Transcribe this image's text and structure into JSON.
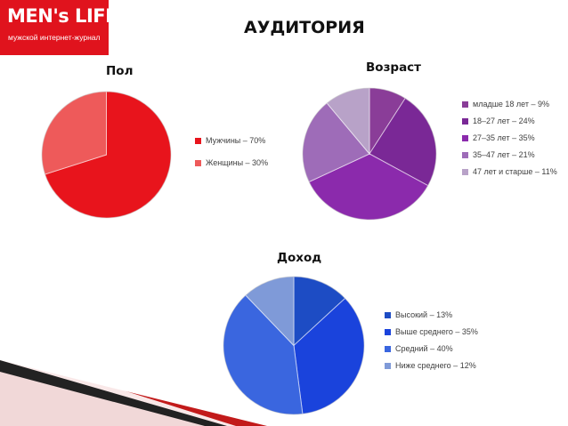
{
  "logo": {
    "title": "MEN's LIFE",
    "subtitle": "мужской интернет-журнал"
  },
  "page_title": "АУДИТОРИЯ",
  "chart_data": [
    {
      "type": "pie",
      "title": "Пол",
      "slices": [
        {
          "label": "Мужчины – 70%",
          "value": 70,
          "color": "#e8141c"
        },
        {
          "label": "Женщины – 30%",
          "value": 30,
          "color": "#ee5a5a"
        }
      ],
      "legend_position": "right"
    },
    {
      "type": "pie",
      "title": "Возраст",
      "slices": [
        {
          "label": "младше 18 лет – 9%",
          "value": 9,
          "color": "#8a3d98"
        },
        {
          "label": "18–27 лет – 24%",
          "value": 24,
          "color": "#7a2896"
        },
        {
          "label": "27–35 лет – 35%",
          "value": 35,
          "color": "#8b2aac"
        },
        {
          "label": "35–47 лет – 21%",
          "value": 21,
          "color": "#9e6cb8"
        },
        {
          "label": "47 лет и старше – 11%",
          "value": 11,
          "color": "#b8a2c8"
        }
      ],
      "legend_position": "right"
    },
    {
      "type": "pie",
      "title": "Доход",
      "slices": [
        {
          "label": "Высокий – 13%",
          "value": 13,
          "color": "#1d4cc4"
        },
        {
          "label": "Выше среднего – 35%",
          "value": 35,
          "color": "#1a43dc"
        },
        {
          "label": "Средний – 40%",
          "value": 40,
          "color": "#3a66df"
        },
        {
          "label": "Ниже среднего – 12%",
          "value": 12,
          "color": "#7f9ad8"
        }
      ],
      "legend_position": "right"
    }
  ]
}
